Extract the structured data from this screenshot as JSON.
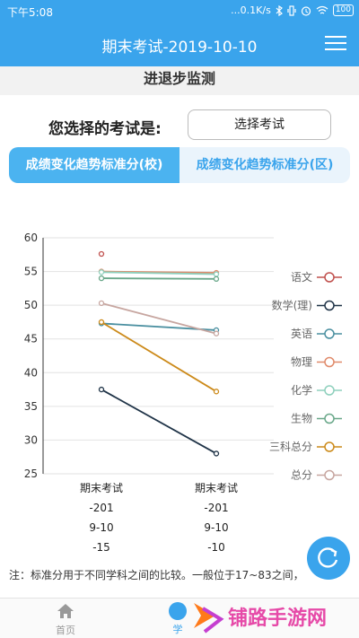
{
  "status_bar": {
    "time": "下午5:08",
    "network": "...0.1K/s",
    "battery": "100"
  },
  "header": {
    "title": "期末考试-2019-10-10"
  },
  "section": {
    "title": "进退步监测"
  },
  "exam_select": {
    "label": "您选择的考试是:",
    "button_label": "选择考试"
  },
  "tabs": [
    {
      "label": "成绩变化趋势标准分(校)",
      "active": true
    },
    {
      "label": "成绩变化趋势标准分(区)",
      "active": false
    }
  ],
  "chart_data": {
    "type": "line",
    "title": "",
    "ylim": [
      25,
      60
    ],
    "yticks": [
      "25",
      "30",
      "35",
      "40",
      "45",
      "50",
      "55",
      "60"
    ],
    "categories": [
      {
        "name": "期末考试",
        "lines": [
          "-201",
          "9-10",
          "-15"
        ]
      },
      {
        "name": "期末考试",
        "lines": [
          "-201",
          "9-10",
          "-10"
        ]
      }
    ],
    "series": [
      {
        "name": "语文",
        "color": "#c0504d",
        "values": [
          57.6,
          null
        ]
      },
      {
        "name": "数学(理)",
        "color": "#1f3347",
        "values": [
          37.5,
          28.0
        ]
      },
      {
        "name": "英语",
        "color": "#4a8fa0",
        "values": [
          47.3,
          46.3
        ]
      },
      {
        "name": "物理",
        "color": "#e08a6a",
        "values": [
          55.0,
          54.8
        ]
      },
      {
        "name": "化学",
        "color": "#8fd0bd",
        "values": [
          54.9,
          54.6
        ]
      },
      {
        "name": "生物",
        "color": "#6aa88a",
        "values": [
          54.0,
          53.9
        ]
      },
      {
        "name": "三科总分",
        "color": "#cc8a1a",
        "values": [
          47.5,
          37.2
        ]
      },
      {
        "name": "总分",
        "color": "#c7a6a0",
        "values": [
          50.3,
          45.8
        ]
      }
    ],
    "grid": true,
    "legend_position": "right"
  },
  "note": {
    "text": "注：标准分用于不同学科之间的比较。一般位于17~83之间，"
  },
  "bottom_nav": {
    "home_label": "首页",
    "second_label": "学"
  },
  "watermark": {
    "text": "铺路手游网"
  }
}
